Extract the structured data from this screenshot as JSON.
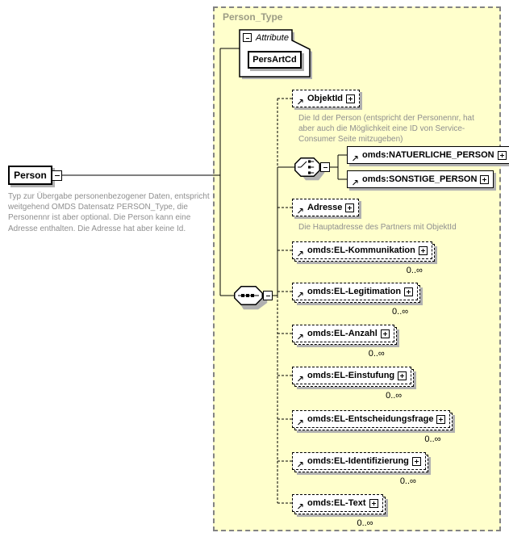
{
  "colors": {
    "panel_bg": "#ffffcc",
    "panel_border": "#838383",
    "shadow": "#b0b0b0",
    "annotation": "#8f8f8f",
    "title_color": "#9c9c85"
  },
  "icons": {
    "expand_expanded": "minus-icon",
    "expand_collapsed": "plus-icon",
    "reference": "ne-arrow-icon",
    "sequence": "sequence-icon",
    "choice": "choice-icon"
  },
  "diagram": {
    "root": {
      "label": "Person",
      "annotation": "Typ zur Übergabe personenbezogener Daten, entspricht weitgehend OMDS Datensatz PERSON_Type, die Personennr ist aber optional. Die Person kann eine Adresse enthalten. Die Adresse hat aber keine Id."
    },
    "panel": {
      "title": "Person_Type"
    },
    "attribute_section": {
      "label": "Attribute",
      "attribute": "PersArtCd"
    },
    "children": {
      "objektid": {
        "label": "ObjektId",
        "annotation": "Die Id der Person (entspricht der Personennr, hat aber auch die Möglichkeit eine ID von Service-Consumer Seite mitzugeben)"
      },
      "natuerliche_person": {
        "label": "omds:NATUERLICHE_PERSON"
      },
      "sonstige_person": {
        "label": "omds:SONSTIGE_PERSON"
      },
      "adresse": {
        "label": "Adresse",
        "annotation": "Die Hauptadresse des Partners mit ObjektId"
      },
      "el_kommunikation": {
        "label": "omds:EL-Kommunikation",
        "cardinality": "0..∞"
      },
      "el_legitimation": {
        "label": "omds:EL-Legitimation",
        "cardinality": "0..∞"
      },
      "el_anzahl": {
        "label": "omds:EL-Anzahl",
        "cardinality": "0..∞"
      },
      "el_einstufung": {
        "label": "omds:EL-Einstufung",
        "cardinality": "0..∞"
      },
      "el_entscheidungsfrage": {
        "label": "omds:EL-Entscheidungsfrage",
        "cardinality": "0..∞"
      },
      "el_identifizierung": {
        "label": "omds:EL-Identifizierung",
        "cardinality": "0..∞"
      },
      "el_text": {
        "label": "omds:EL-Text",
        "cardinality": "0..∞"
      }
    }
  }
}
